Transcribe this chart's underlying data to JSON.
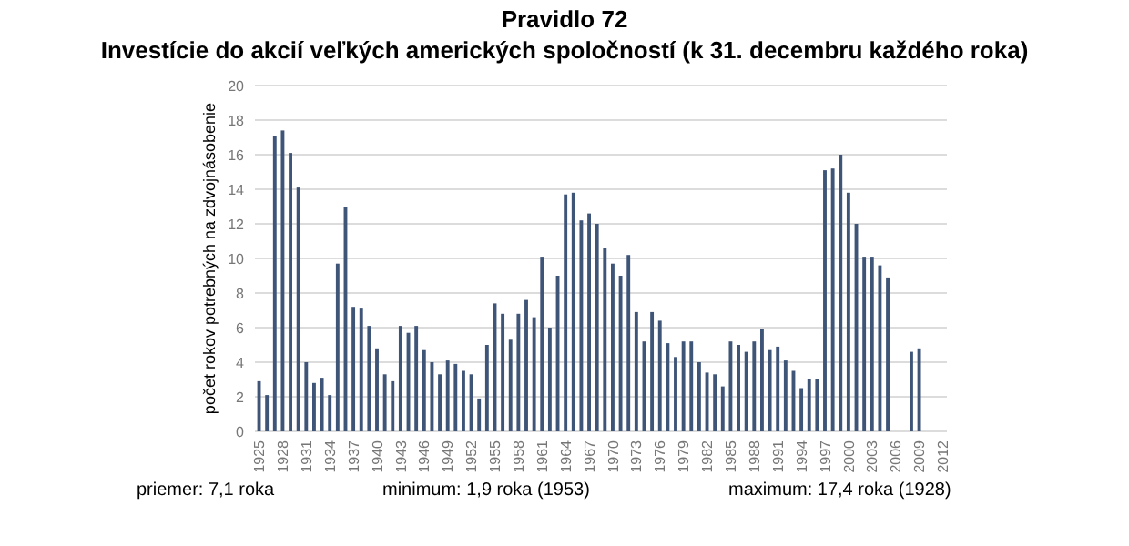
{
  "chart_data": {
    "type": "bar",
    "title": "Pravidlo 72",
    "subtitle": "Investície do akcií veľkých amerických spoločností (k 31. decembru každého roka)",
    "ylabel": "počet rokov potrebných na zdvojnásobenie",
    "categories": [
      "1925",
      null,
      null,
      "1928",
      null,
      null,
      "1931",
      null,
      null,
      "1934",
      null,
      null,
      "1937",
      null,
      null,
      "1940",
      null,
      null,
      "1943",
      null,
      null,
      "1946",
      null,
      null,
      "1949",
      null,
      null,
      "1952",
      null,
      null,
      "1955",
      null,
      null,
      "1958",
      null,
      null,
      "1961",
      null,
      null,
      "1964",
      null,
      null,
      "1967",
      null,
      null,
      "1970",
      null,
      null,
      "1973",
      null,
      null,
      "1976",
      null,
      null,
      "1979",
      null,
      null,
      "1982",
      null,
      null,
      "1985",
      null,
      null,
      "1988",
      null,
      null,
      "1991",
      null,
      null,
      "1994",
      null,
      null,
      "1997",
      null,
      null,
      "2000",
      null,
      null,
      "2003",
      null,
      null,
      "2006",
      null,
      null,
      "2009",
      null,
      null,
      "2012"
    ],
    "values": [
      2.9,
      2.1,
      17.1,
      17.4,
      16.1,
      14.1,
      4.0,
      2.8,
      3.1,
      2.1,
      9.7,
      13.0,
      7.2,
      7.1,
      6.1,
      4.8,
      3.3,
      2.9,
      6.1,
      5.7,
      6.1,
      4.7,
      4.0,
      3.3,
      4.1,
      3.9,
      3.5,
      3.3,
      1.9,
      5.0,
      7.4,
      6.8,
      5.3,
      6.8,
      7.6,
      6.6,
      10.1,
      6.0,
      9.0,
      13.7,
      13.8,
      12.2,
      12.6,
      12.0,
      10.6,
      9.7,
      9.0,
      10.2,
      6.9,
      5.2,
      6.9,
      6.4,
      5.1,
      4.3,
      5.2,
      5.2,
      4.0,
      3.4,
      3.3,
      2.6,
      5.2,
      5.0,
      4.6,
      5.2,
      5.9,
      4.7,
      4.9,
      4.1,
      3.5,
      2.5,
      3.0,
      3.0,
      15.1,
      15.2,
      16.0,
      13.8,
      12.0,
      10.1,
      10.1,
      9.6,
      8.9,
      null,
      null,
      4.6,
      4.8,
      null,
      null,
      null
    ],
    "color": "#3f5578",
    "ylim": [
      0,
      20
    ],
    "yticks": [
      0,
      2,
      4,
      6,
      8,
      10,
      12,
      14,
      16,
      18,
      20
    ],
    "grid": "y",
    "annotations": [
      "priemer: 7,1 roka",
      "minimum: 1,9 roka (1953)",
      "maximum: 17,4 roka (1928)"
    ]
  }
}
